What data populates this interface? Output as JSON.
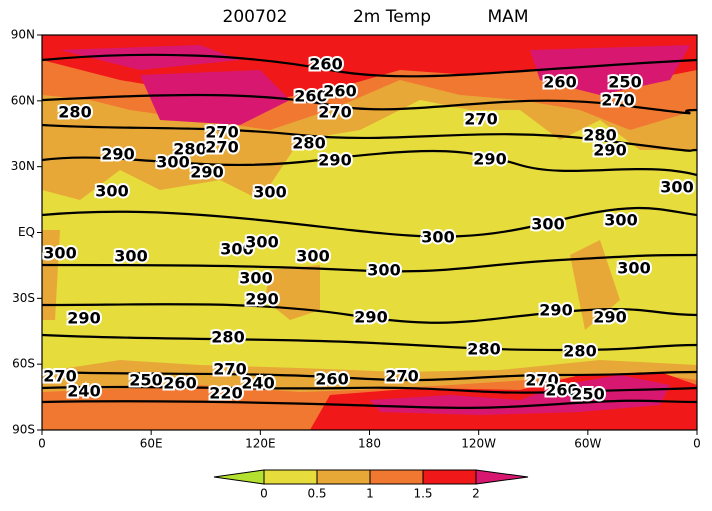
{
  "title": {
    "date": "200702",
    "variable": "2m Temp",
    "season": "MAM"
  },
  "y_axis": {
    "labels": [
      "90N",
      "60N",
      "30N",
      "EQ",
      "30S",
      "60S",
      "90S"
    ]
  },
  "x_axis": {
    "labels": [
      "0",
      "60E",
      "120E",
      "180",
      "120W",
      "60W",
      "0"
    ]
  },
  "colorbar": {
    "ticks": [
      "0",
      "0.5",
      "1",
      "1.5",
      "2"
    ]
  },
  "contour_labels": [
    260,
    260,
    250,
    270,
    280,
    260,
    260,
    270,
    270,
    270,
    280,
    280,
    270,
    280,
    290,
    290,
    290,
    290,
    300,
    290,
    300,
    300,
    300,
    300,
    300,
    300,
    300,
    300,
    300,
    300,
    300,
    300,
    300,
    300,
    290,
    290,
    290,
    290,
    290,
    280,
    280,
    280,
    270,
    270,
    270,
    270,
    250,
    260,
    240,
    260,
    240,
    220,
    260,
    250
  ]
}
